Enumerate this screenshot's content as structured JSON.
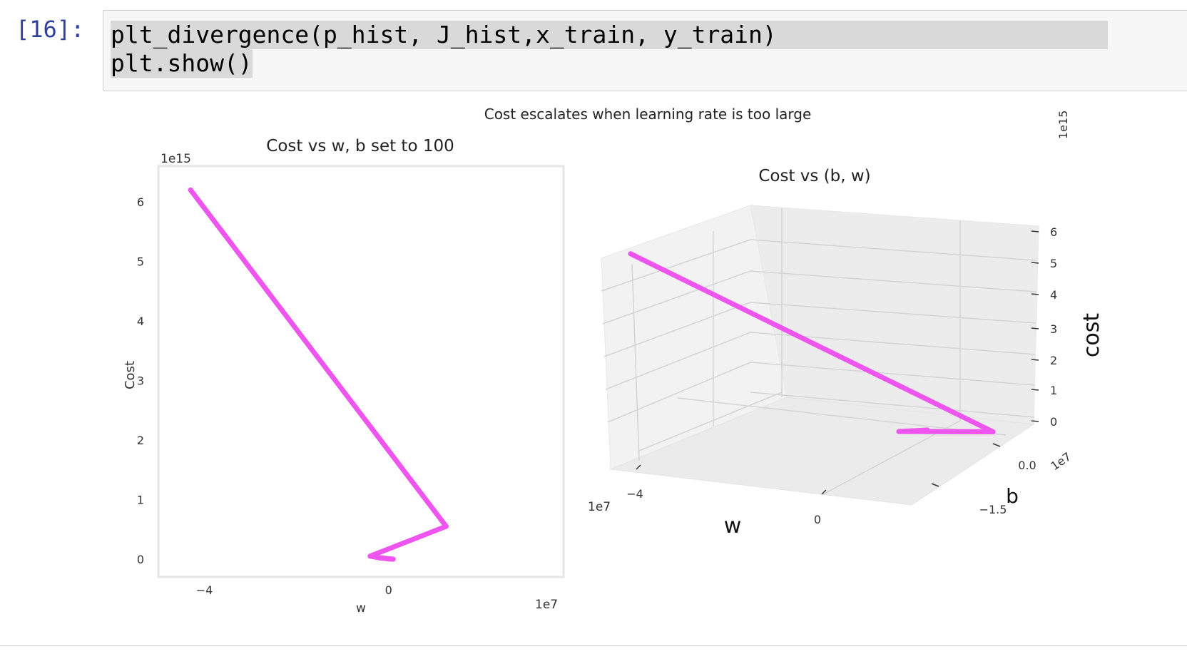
{
  "cell": {
    "prompt": "[16]:",
    "code_lines": [
      "plt_divergence(p_hist, J_hist,x_train, y_train)",
      "plt.show()"
    ]
  },
  "figure": {
    "suptitle": "Cost escalates when learning rate is too large"
  },
  "colors": {
    "trace": "#ee55ee",
    "prompt": "#303f9f",
    "code_bg": "#f7f7f7",
    "code_highlight": "#d9d9d9"
  },
  "chart_data": [
    {
      "type": "line",
      "title": "Cost vs w, b set to 100",
      "xlabel": "w",
      "ylabel": "Cost",
      "x_offset_text": "1e7",
      "y_offset_text": "1e15",
      "xlim": [
        -5,
        3.8
      ],
      "ylim": [
        -0.3,
        6.6
      ],
      "xticks": [
        {
          "value": -4,
          "label": "−4"
        },
        {
          "value": 0,
          "label": "0"
        }
      ],
      "yticks": [
        {
          "value": 0,
          "label": "0"
        },
        {
          "value": 1,
          "label": "1"
        },
        {
          "value": 2,
          "label": "2"
        },
        {
          "value": 3,
          "label": "3"
        },
        {
          "value": 4,
          "label": "4"
        },
        {
          "value": 5,
          "label": "5"
        },
        {
          "value": 6,
          "label": "6"
        }
      ],
      "grid": false,
      "x": [
        -4.3,
        1.25,
        -0.4,
        -0.25,
        0.1,
        -0.2,
        0.05
      ],
      "y": [
        6.2,
        0.55,
        0.05,
        0.03,
        0.0,
        0.02,
        0.0
      ]
    },
    {
      "type": "line3d",
      "title": "Cost vs (b, w)",
      "xlabel": "w",
      "ylabel": "b",
      "zlabel": "cost",
      "x_offset_text": "1e7",
      "y_offset_text": "1e7",
      "z_offset_text": "1e15",
      "xticks": [
        {
          "value": -4,
          "label": "−4"
        },
        {
          "value": 0,
          "label": "0"
        }
      ],
      "yticks": [
        {
          "value": 0.0,
          "label": "0.0"
        },
        {
          "value": -1.5,
          "label": "−1.5"
        }
      ],
      "zticks": [
        {
          "value": 0,
          "label": "0"
        },
        {
          "value": 1,
          "label": "1"
        },
        {
          "value": 2,
          "label": "2"
        },
        {
          "value": 3,
          "label": "3"
        },
        {
          "value": 4,
          "label": "4"
        },
        {
          "value": 5,
          "label": "5"
        },
        {
          "value": 6,
          "label": "6"
        }
      ],
      "grid": true,
      "w": [
        -4.3,
        1.25,
        -0.4,
        0.1
      ],
      "b": [
        100,
        100,
        100,
        100
      ],
      "cost": [
        6.2,
        0.55,
        0.05,
        0.0
      ]
    }
  ]
}
